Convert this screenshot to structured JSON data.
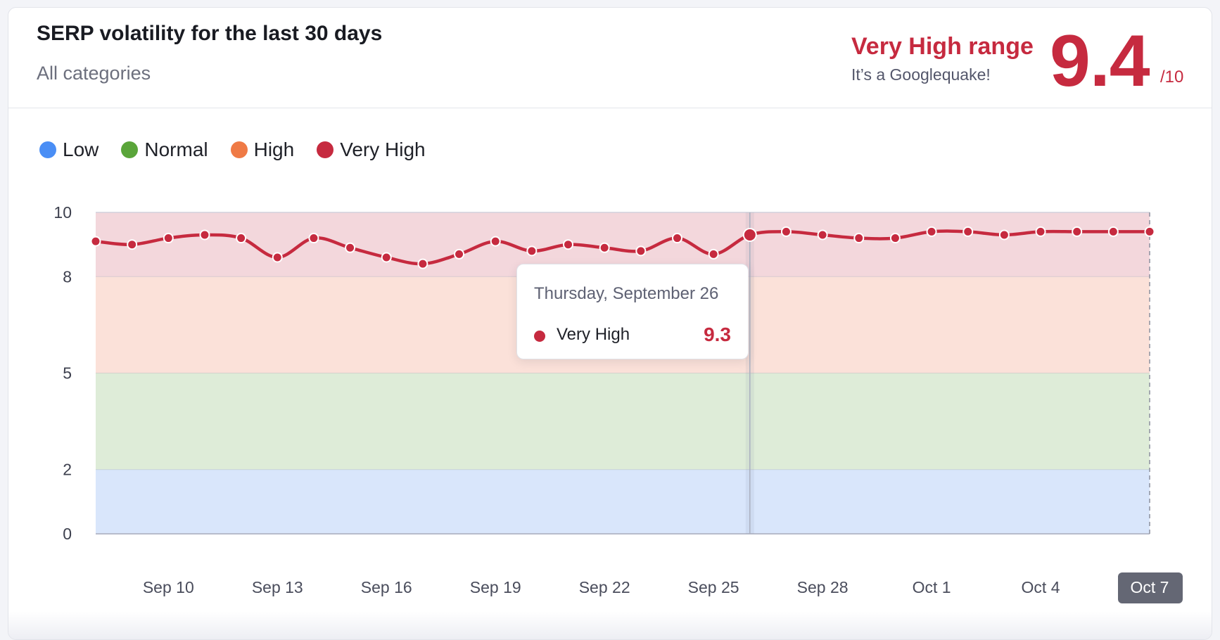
{
  "header": {
    "title": "SERP volatility for the last 30 days",
    "subtitle": "All categories",
    "range_label": "Very High range",
    "range_sub": "It’s a Googlequake!",
    "score": "9.4",
    "score_max": "/10"
  },
  "legend": {
    "items": [
      {
        "label": "Low",
        "color": "#4a8ef5"
      },
      {
        "label": "Normal",
        "color": "#5aa53a"
      },
      {
        "label": "High",
        "color": "#ef7a45"
      },
      {
        "label": "Very High",
        "color": "#c62a3f"
      }
    ]
  },
  "tooltip": {
    "date": "Thursday, September 26",
    "series": "Very High",
    "value": "9.3"
  },
  "colors": {
    "accent": "#c62a3f",
    "band_low": "#d9e6fb",
    "band_normal": "#deecd8",
    "band_high": "#fbe1d9",
    "band_very_high": "#f3d7dc"
  },
  "chart_data": {
    "type": "area",
    "x": [
      "Sep 8",
      "Sep 9",
      "Sep 10",
      "Sep 11",
      "Sep 12",
      "Sep 13",
      "Sep 14",
      "Sep 15",
      "Sep 16",
      "Sep 17",
      "Sep 18",
      "Sep 19",
      "Sep 20",
      "Sep 21",
      "Sep 22",
      "Sep 23",
      "Sep 24",
      "Sep 25",
      "Sep 26",
      "Sep 27",
      "Sep 28",
      "Sep 29",
      "Sep 30",
      "Oct 1",
      "Oct 2",
      "Oct 3",
      "Oct 4",
      "Oct 5",
      "Oct 6",
      "Oct 7"
    ],
    "series": [
      {
        "name": "Very High",
        "values": [
          9.1,
          9.0,
          9.2,
          9.3,
          9.2,
          8.6,
          9.2,
          8.9,
          8.6,
          8.4,
          8.7,
          9.1,
          8.8,
          9.0,
          8.9,
          8.8,
          9.2,
          8.7,
          9.3,
          9.4,
          9.3,
          9.2,
          9.2,
          9.4,
          9.4,
          9.3,
          9.4,
          9.4,
          9.4,
          9.4
        ]
      }
    ],
    "bands": [
      {
        "label": "Low",
        "from": 0,
        "to": 2
      },
      {
        "label": "Normal",
        "from": 2,
        "to": 5
      },
      {
        "label": "High",
        "from": 5,
        "to": 8
      },
      {
        "label": "Very High",
        "from": 8,
        "to": 10
      }
    ],
    "y_ticks": [
      0,
      2,
      5,
      8,
      10
    ],
    "x_tick_labels": [
      "Sep 10",
      "Sep 13",
      "Sep 16",
      "Sep 19",
      "Sep 22",
      "Sep 25",
      "Sep 28",
      "Oct 1",
      "Oct 4",
      "Oct 7"
    ],
    "highlighted_x_label": "Oct 7",
    "hover_index": 18,
    "ylim": [
      0,
      10
    ],
    "legend_position": "top-left",
    "grid": false
  }
}
